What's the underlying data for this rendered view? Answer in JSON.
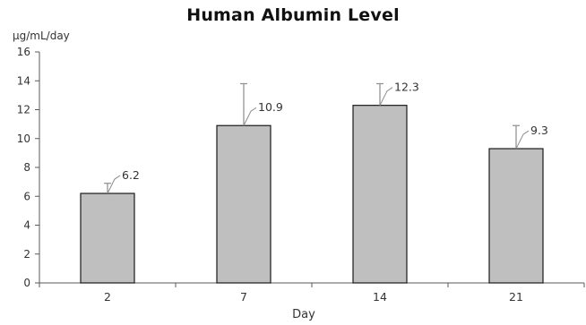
{
  "chart_data": {
    "type": "bar",
    "title": "Human Albumin Level",
    "ylabel": "μg/mL/day",
    "xlabel": "Day",
    "categories": [
      "2",
      "7",
      "14",
      "21"
    ],
    "values": [
      6.2,
      10.9,
      12.3,
      9.3
    ],
    "error_upper": [
      0.7,
      2.9,
      1.5,
      1.6
    ],
    "data_labels": [
      "6.2",
      "10.9",
      "12.3",
      "9.3"
    ],
    "ylim": [
      0,
      16
    ],
    "yticks": [
      "0",
      "2",
      "4",
      "6",
      "8",
      "10",
      "12",
      "14",
      "16"
    ],
    "grid": false,
    "legend": "none",
    "colors": {
      "bar_fill": "#bfbfbf",
      "bar_stroke": "#1a1a1a",
      "axis": "#595959",
      "error_bar": "#8c8c8c",
      "label_leader": "#8c8c8c"
    }
  }
}
